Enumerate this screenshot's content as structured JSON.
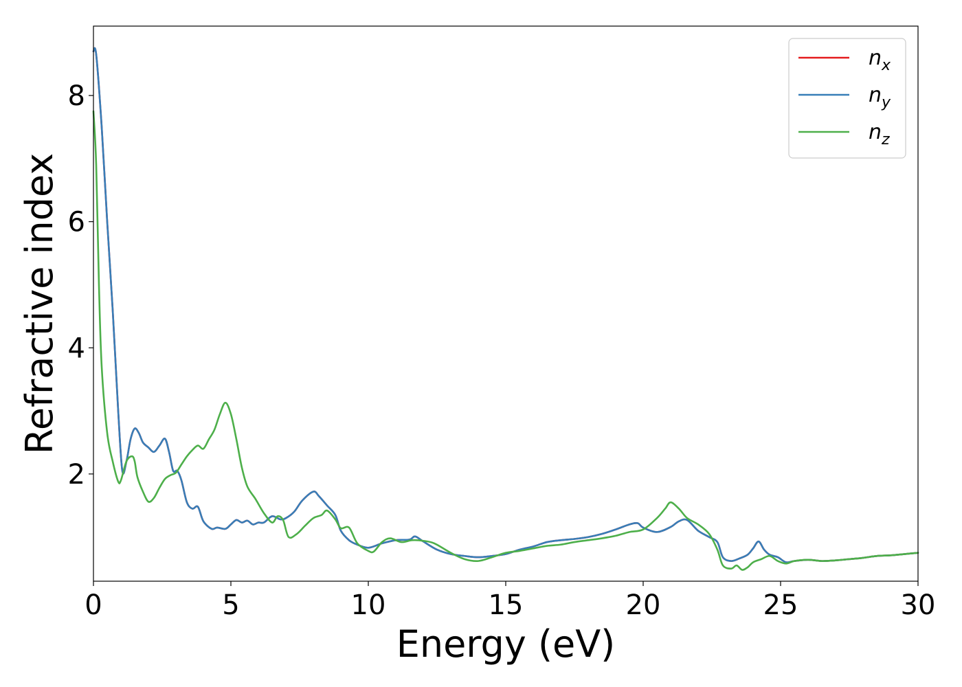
{
  "chart_data": {
    "type": "line",
    "xlabel": "Energy (eV)",
    "ylabel": "Refractive index",
    "xlim": [
      0,
      30
    ],
    "ylim": [
      0.3,
      9.1
    ],
    "xticks": [
      0,
      5,
      10,
      15,
      20,
      25,
      30
    ],
    "yticks": [
      2,
      4,
      6,
      8
    ],
    "grid": false,
    "legend_position": "top-right",
    "series": [
      {
        "name": "n_x",
        "label_base": "n",
        "label_sub": "x",
        "color": "#e41a1c",
        "x": [
          0,
          0.1,
          0.3,
          0.5,
          0.7,
          0.9,
          1.05,
          1.2,
          1.35,
          1.5,
          1.65,
          1.8,
          2.0,
          2.2,
          2.4,
          2.6,
          2.75,
          2.9,
          3.05,
          3.2,
          3.4,
          3.6,
          3.8,
          4.0,
          4.3,
          4.5,
          4.8,
          5.0,
          5.2,
          5.4,
          5.6,
          5.8,
          6.0,
          6.2,
          6.5,
          6.8,
          7.0,
          7.3,
          7.6,
          8.0,
          8.2,
          8.5,
          8.8,
          9.0,
          9.3,
          9.6,
          10.0,
          10.5,
          11.0,
          11.5,
          11.7,
          12.0,
          12.5,
          13.0,
          13.5,
          14.0,
          14.5,
          15.0,
          15.5,
          16.0,
          16.5,
          17.0,
          17.5,
          18.0,
          18.5,
          19.0,
          19.5,
          19.8,
          20.0,
          20.5,
          21.0,
          21.3,
          21.6,
          22.0,
          22.4,
          22.7,
          22.9,
          23.2,
          23.5,
          23.8,
          24.0,
          24.2,
          24.4,
          24.6,
          24.9,
          25.2,
          25.5,
          26.0,
          26.5,
          27.0,
          27.5,
          28.0,
          28.5,
          29.0,
          29.5,
          30.0
        ],
        "y": [
          8.7,
          8.65,
          7.5,
          6.0,
          4.6,
          3.0,
          2.05,
          2.2,
          2.55,
          2.72,
          2.65,
          2.5,
          2.42,
          2.35,
          2.45,
          2.56,
          2.35,
          2.05,
          2.05,
          1.9,
          1.55,
          1.45,
          1.48,
          1.25,
          1.13,
          1.15,
          1.13,
          1.2,
          1.27,
          1.23,
          1.26,
          1.2,
          1.23,
          1.23,
          1.33,
          1.28,
          1.3,
          1.4,
          1.58,
          1.72,
          1.65,
          1.5,
          1.35,
          1.1,
          0.95,
          0.88,
          0.83,
          0.9,
          0.95,
          0.96,
          1.01,
          0.93,
          0.8,
          0.73,
          0.7,
          0.68,
          0.7,
          0.73,
          0.8,
          0.85,
          0.92,
          0.95,
          0.97,
          1.0,
          1.05,
          1.12,
          1.2,
          1.22,
          1.15,
          1.08,
          1.16,
          1.25,
          1.27,
          1.1,
          1.0,
          0.92,
          0.68,
          0.62,
          0.66,
          0.72,
          0.82,
          0.93,
          0.8,
          0.72,
          0.68,
          0.6,
          0.62,
          0.64,
          0.62,
          0.63,
          0.65,
          0.67,
          0.7,
          0.71,
          0.73,
          0.75
        ]
      },
      {
        "name": "n_y",
        "label_base": "n",
        "label_sub": "y",
        "color": "#377eb8",
        "x": [
          0,
          0.1,
          0.3,
          0.5,
          0.7,
          0.9,
          1.05,
          1.2,
          1.35,
          1.5,
          1.65,
          1.8,
          2.0,
          2.2,
          2.4,
          2.6,
          2.75,
          2.9,
          3.05,
          3.2,
          3.4,
          3.6,
          3.8,
          4.0,
          4.3,
          4.5,
          4.8,
          5.0,
          5.2,
          5.4,
          5.6,
          5.8,
          6.0,
          6.2,
          6.5,
          6.8,
          7.0,
          7.3,
          7.6,
          8.0,
          8.2,
          8.5,
          8.8,
          9.0,
          9.3,
          9.6,
          10.0,
          10.5,
          11.0,
          11.5,
          11.7,
          12.0,
          12.5,
          13.0,
          13.5,
          14.0,
          14.5,
          15.0,
          15.5,
          16.0,
          16.5,
          17.0,
          17.5,
          18.0,
          18.5,
          19.0,
          19.5,
          19.8,
          20.0,
          20.5,
          21.0,
          21.3,
          21.6,
          22.0,
          22.4,
          22.7,
          22.9,
          23.2,
          23.5,
          23.8,
          24.0,
          24.2,
          24.4,
          24.6,
          24.9,
          25.2,
          25.5,
          26.0,
          26.5,
          27.0,
          27.5,
          28.0,
          28.5,
          29.0,
          29.5,
          30.0
        ],
        "y": [
          8.7,
          8.65,
          7.5,
          6.0,
          4.6,
          3.0,
          2.05,
          2.2,
          2.55,
          2.72,
          2.65,
          2.5,
          2.42,
          2.35,
          2.45,
          2.56,
          2.35,
          2.05,
          2.05,
          1.9,
          1.55,
          1.45,
          1.48,
          1.25,
          1.13,
          1.15,
          1.13,
          1.2,
          1.27,
          1.23,
          1.26,
          1.2,
          1.23,
          1.23,
          1.33,
          1.28,
          1.3,
          1.4,
          1.58,
          1.72,
          1.65,
          1.5,
          1.35,
          1.1,
          0.95,
          0.88,
          0.83,
          0.9,
          0.95,
          0.96,
          1.01,
          0.93,
          0.8,
          0.73,
          0.7,
          0.68,
          0.7,
          0.73,
          0.8,
          0.85,
          0.92,
          0.95,
          0.97,
          1.0,
          1.05,
          1.12,
          1.2,
          1.22,
          1.15,
          1.08,
          1.16,
          1.25,
          1.27,
          1.1,
          1.0,
          0.92,
          0.68,
          0.62,
          0.66,
          0.72,
          0.82,
          0.93,
          0.8,
          0.72,
          0.68,
          0.6,
          0.62,
          0.64,
          0.62,
          0.63,
          0.65,
          0.67,
          0.7,
          0.71,
          0.73,
          0.75
        ]
      },
      {
        "name": "n_z",
        "label_base": "n",
        "label_sub": "z",
        "color": "#4daf4a",
        "x": [
          0,
          0.1,
          0.2,
          0.3,
          0.5,
          0.7,
          0.9,
          1.0,
          1.2,
          1.4,
          1.5,
          1.6,
          1.8,
          2.0,
          2.2,
          2.4,
          2.6,
          2.8,
          3.0,
          3.2,
          3.4,
          3.6,
          3.8,
          4.0,
          4.2,
          4.4,
          4.6,
          4.8,
          5.0,
          5.2,
          5.4,
          5.6,
          5.9,
          6.2,
          6.5,
          6.7,
          6.9,
          7.1,
          7.4,
          7.7,
          8.0,
          8.3,
          8.5,
          8.8,
          9.0,
          9.3,
          9.6,
          10.0,
          10.2,
          10.5,
          10.8,
          11.2,
          11.6,
          12.0,
          12.4,
          13.0,
          13.5,
          14.0,
          14.5,
          15.0,
          15.5,
          16.0,
          16.5,
          17.0,
          17.5,
          18.0,
          18.5,
          19.0,
          19.5,
          20.0,
          20.5,
          20.8,
          21.0,
          21.3,
          21.6,
          22.0,
          22.4,
          22.7,
          22.9,
          23.2,
          23.4,
          23.6,
          23.8,
          24.0,
          24.3,
          24.6,
          24.9,
          25.2,
          25.5,
          26.0,
          26.5,
          27.0,
          27.5,
          28.0,
          28.5,
          29.0,
          29.5,
          30.0
        ],
        "y": [
          7.75,
          6.9,
          5.0,
          3.7,
          2.65,
          2.2,
          1.88,
          1.9,
          2.2,
          2.28,
          2.2,
          1.95,
          1.72,
          1.56,
          1.62,
          1.78,
          1.92,
          1.98,
          2.02,
          2.15,
          2.28,
          2.38,
          2.45,
          2.4,
          2.55,
          2.7,
          2.95,
          3.13,
          2.95,
          2.55,
          2.1,
          1.8,
          1.6,
          1.38,
          1.23,
          1.33,
          1.27,
          1.0,
          1.05,
          1.18,
          1.3,
          1.35,
          1.42,
          1.28,
          1.14,
          1.15,
          0.9,
          0.78,
          0.77,
          0.92,
          0.98,
          0.92,
          0.95,
          0.94,
          0.9,
          0.75,
          0.65,
          0.62,
          0.68,
          0.75,
          0.78,
          0.82,
          0.86,
          0.88,
          0.92,
          0.95,
          0.98,
          1.02,
          1.08,
          1.12,
          1.3,
          1.45,
          1.55,
          1.45,
          1.3,
          1.2,
          1.05,
          0.8,
          0.55,
          0.5,
          0.55,
          0.48,
          0.52,
          0.6,
          0.65,
          0.7,
          0.62,
          0.58,
          0.62,
          0.64,
          0.62,
          0.63,
          0.65,
          0.67,
          0.7,
          0.71,
          0.73,
          0.75
        ]
      }
    ]
  }
}
